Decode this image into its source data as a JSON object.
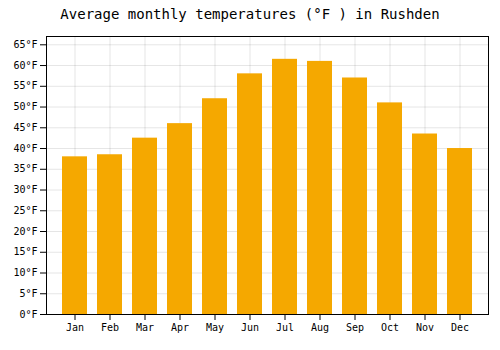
{
  "chart_data": {
    "type": "bar",
    "title": "Average monthly temperatures (°F ) in Rushden",
    "categories": [
      "Jan",
      "Feb",
      "Mar",
      "Apr",
      "May",
      "Jun",
      "Jul",
      "Aug",
      "Sep",
      "Oct",
      "Nov",
      "Dec"
    ],
    "values": [
      38,
      38.5,
      42.5,
      46,
      52,
      58,
      61.5,
      61,
      57,
      51,
      43.5,
      40
    ],
    "color": "#F5A800",
    "ylim": [
      0,
      67
    ],
    "yticks": [
      {
        "value": 0,
        "label": "0°F"
      },
      {
        "value": 5,
        "label": "5°F"
      },
      {
        "value": 10,
        "label": "10°F"
      },
      {
        "value": 15,
        "label": "15°F"
      },
      {
        "value": 20,
        "label": "20°F"
      },
      {
        "value": 25,
        "label": "25°F"
      },
      {
        "value": 30,
        "label": "30°F"
      },
      {
        "value": 35,
        "label": "35°F"
      },
      {
        "value": 40,
        "label": "40°F"
      },
      {
        "value": 45,
        "label": "45°F"
      },
      {
        "value": 50,
        "label": "50°F"
      },
      {
        "value": 55,
        "label": "55°F"
      },
      {
        "value": 60,
        "label": "60°F"
      },
      {
        "value": 65,
        "label": "65°F"
      }
    ],
    "grid": true
  }
}
